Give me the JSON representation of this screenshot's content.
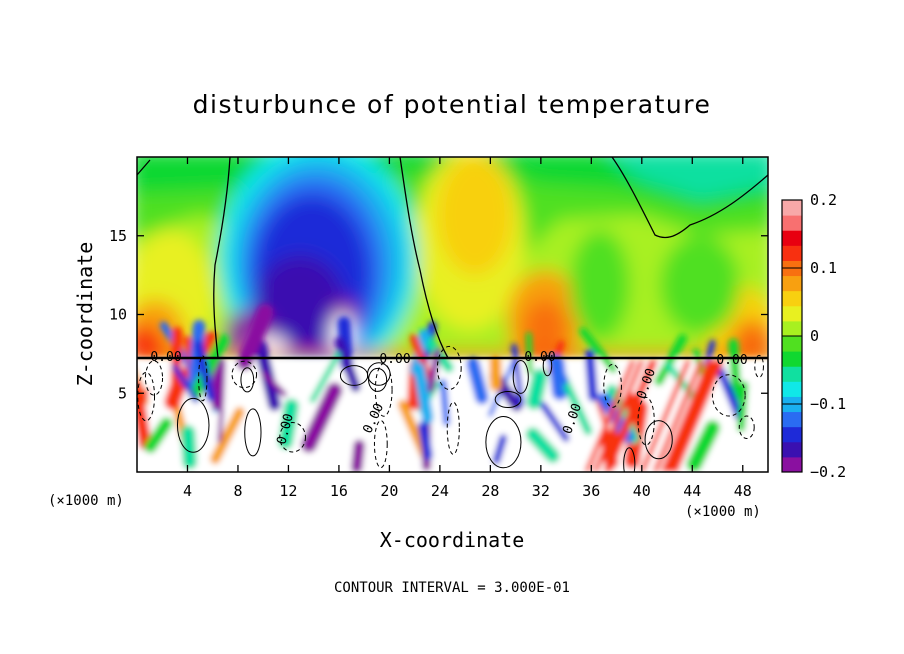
{
  "chart_data": {
    "type": "heatmap",
    "title": "disturbunce of potential temperature",
    "xlabel": "X-coordinate",
    "ylabel": "Z-coordinate",
    "x_unit_left": "(×1000 m)",
    "x_unit_right": "(×1000 m)",
    "xlim": [
      0,
      50
    ],
    "ylim": [
      0,
      20
    ],
    "x_ticks": [
      "4",
      "8",
      "12",
      "16",
      "20",
      "24",
      "28",
      "32",
      "36",
      "40",
      "44",
      "48"
    ],
    "y_ticks": [
      "5",
      "10",
      "15"
    ],
    "colorbar": {
      "range": [
        -0.2,
        0.2
      ],
      "tick_labels": [
        "0.2",
        "0.1",
        "0",
        "−0.1",
        "−0.2"
      ],
      "colors": [
        "#8a10a0",
        "#3a10b0",
        "#1e2ad8",
        "#2a6cf2",
        "#1ab0f0",
        "#10e8e8",
        "#10e0a0",
        "#10d830",
        "#50e020",
        "#a8f020",
        "#e8f020",
        "#f8d010",
        "#f8a010",
        "#f87010",
        "#f83010",
        "#e80010",
        "#f87070",
        "#f8a8a8"
      ]
    },
    "contour_labels": [
      "0.00",
      "0.00",
      "0.00",
      "0.00",
      "0.00",
      "0.00",
      "0.00",
      "0.00"
    ],
    "footer": "CONTOUR INTERVAL = 3.000E-01"
  }
}
